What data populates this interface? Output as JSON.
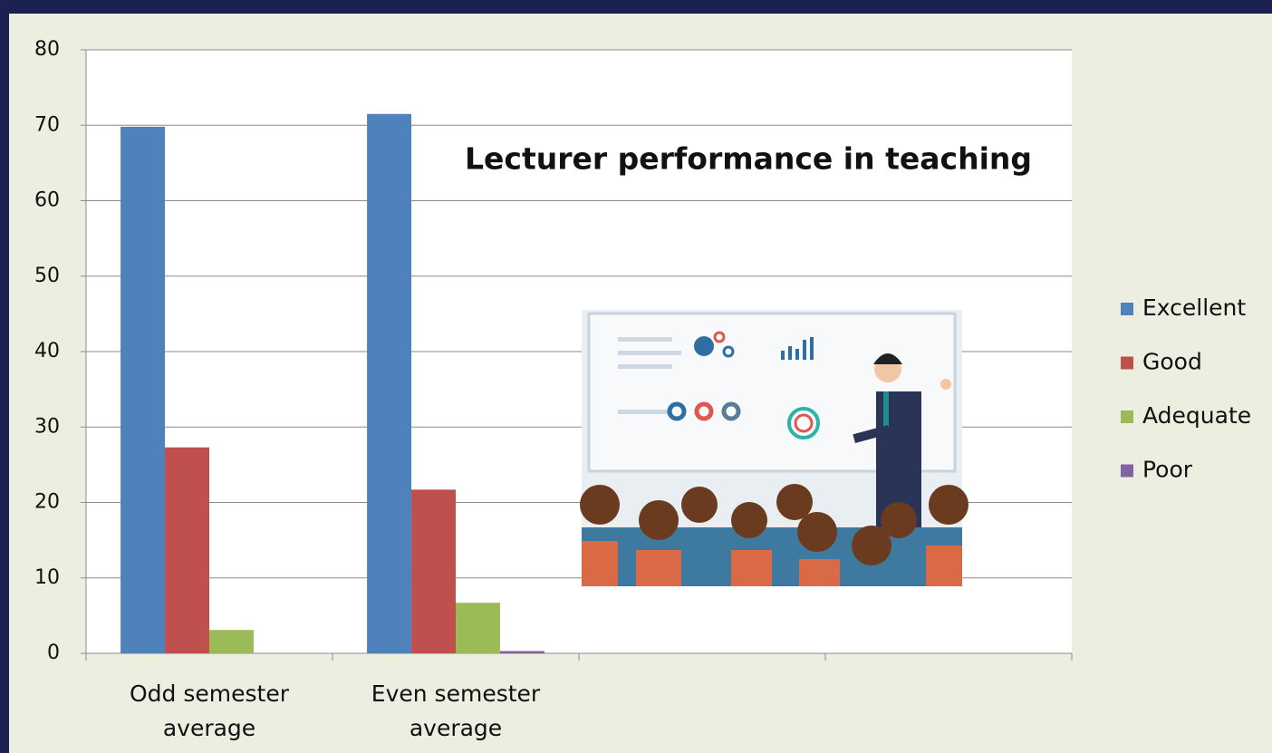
{
  "chart_data": {
    "type": "bar",
    "title": "Lecturer performance in teaching",
    "categories": [
      "Odd semester average",
      "Even semester average",
      null,
      null
    ],
    "series": [
      {
        "name": "Excellent",
        "color": "#4f81bd",
        "values": [
          69.8,
          71.5,
          null,
          null
        ]
      },
      {
        "name": "Good",
        "color": "#c0504d",
        "values": [
          27.3,
          21.7,
          null,
          null
        ]
      },
      {
        "name": "Adequate",
        "color": "#9bbb59",
        "values": [
          3.1,
          6.7,
          null,
          null
        ]
      },
      {
        "name": "Poor",
        "color": "#8064a2",
        "values": [
          0,
          0.3,
          null,
          null
        ]
      }
    ],
    "ylim": [
      0,
      80
    ],
    "yticks": [
      0,
      10,
      20,
      30,
      40,
      50,
      60,
      70,
      80
    ],
    "grid": true,
    "legend": "right"
  }
}
